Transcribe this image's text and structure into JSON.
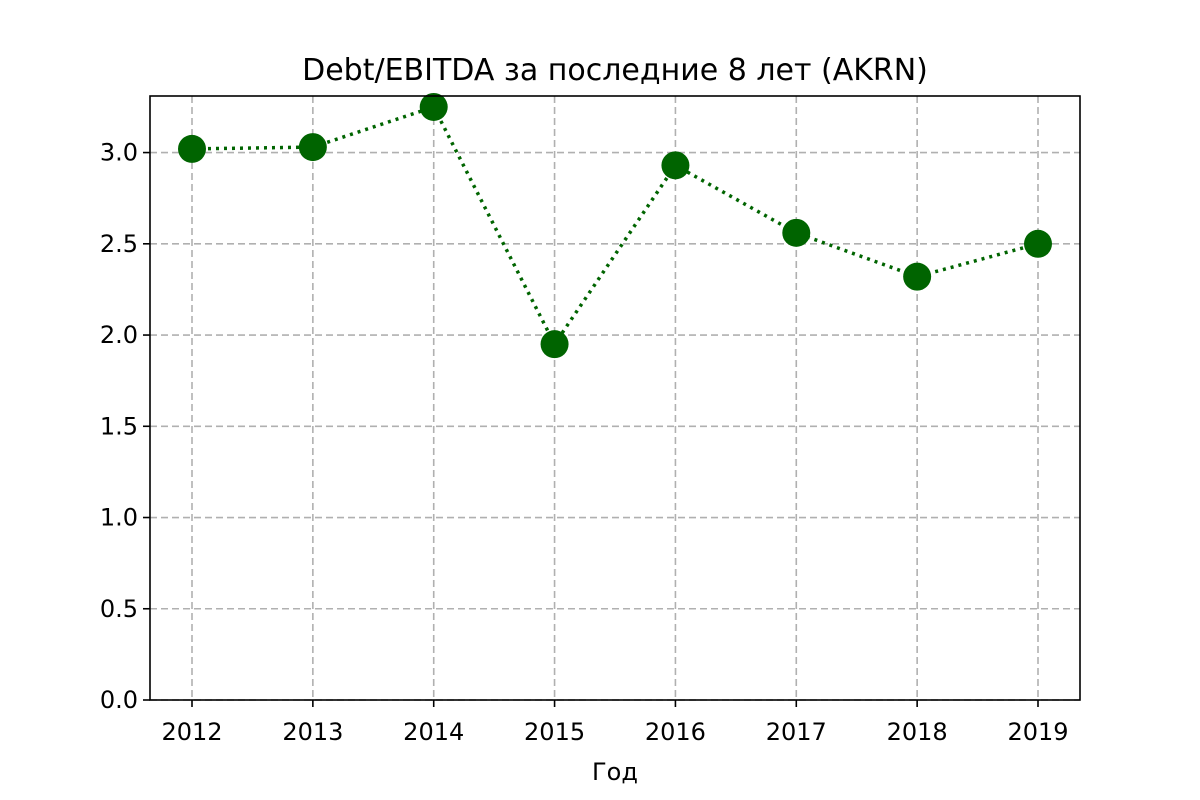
{
  "chart_data": {
    "type": "line",
    "title": "Debt/EBITDA за последние 8 лет (AKRN)",
    "xlabel": "Год",
    "ylabel": "",
    "categories": [
      "2012",
      "2013",
      "2014",
      "2015",
      "2016",
      "2017",
      "2018",
      "2019"
    ],
    "series": [
      {
        "values": [
          3.02,
          3.03,
          3.25,
          1.95,
          2.93,
          2.56,
          2.32,
          2.5
        ],
        "color": "#006400",
        "line_style": "dotted",
        "marker": "circle"
      }
    ],
    "ylim": [
      0,
      3.31
    ],
    "yticks": [
      {
        "value": 0.0,
        "label": "0.0"
      },
      {
        "value": 0.5,
        "label": "0.5"
      },
      {
        "value": 1.0,
        "label": "1.0"
      },
      {
        "value": 1.5,
        "label": "1.5"
      },
      {
        "value": 2.0,
        "label": "2.0"
      },
      {
        "value": 2.5,
        "label": "2.5"
      },
      {
        "value": 3.0,
        "label": "3.0"
      }
    ],
    "grid": true,
    "grid_style": "dashed"
  }
}
